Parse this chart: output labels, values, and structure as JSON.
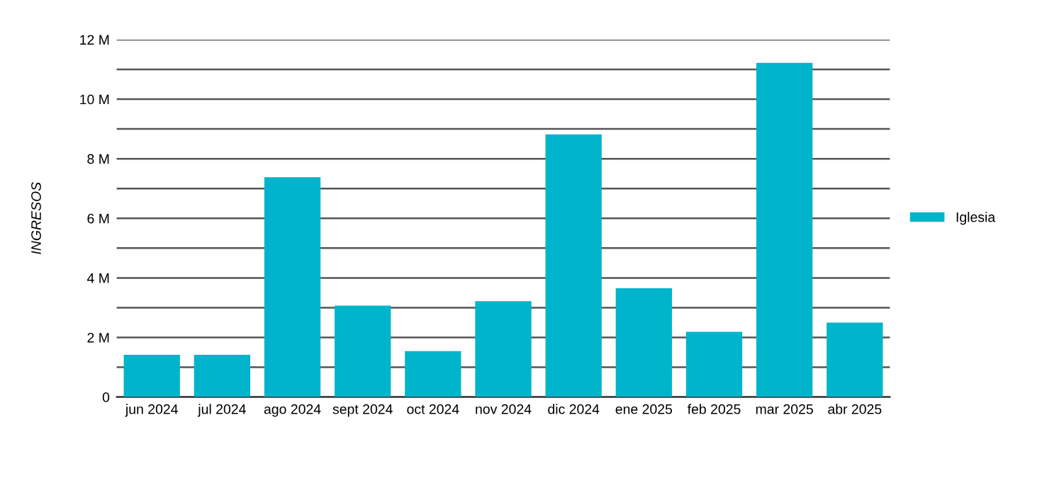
{
  "chart_data": {
    "type": "bar",
    "ylabel": "INGRESOS",
    "categories": [
      "jun 2024",
      "jul 2024",
      "ago 2024",
      "sept 2024",
      "oct 2024",
      "nov 2024",
      "dic 2024",
      "ene 2025",
      "feb 2025",
      "mar 2025",
      "abr 2025"
    ],
    "series": [
      {
        "name": "Iglesia",
        "color": "#00b5cb",
        "values": [
          1.42,
          1.42,
          7.38,
          3.07,
          1.54,
          3.22,
          8.82,
          3.65,
          2.19,
          11.22,
          2.5
        ]
      }
    ],
    "ylim": [
      0,
      12
    ],
    "yticks": [
      0,
      {
        "value": 1,
        "label": null
      },
      {
        "value": 2,
        "label": "2 M"
      },
      {
        "value": 3,
        "label": null
      },
      {
        "value": 4,
        "label": "4 M"
      },
      {
        "value": 5,
        "label": null
      },
      {
        "value": 6,
        "label": "6 M"
      },
      {
        "value": 7,
        "label": null
      },
      {
        "value": 8,
        "label": "8 M"
      },
      {
        "value": 9,
        "label": null
      },
      {
        "value": 10,
        "label": "10 M"
      },
      {
        "value": 11,
        "label": null
      },
      {
        "value": 12,
        "label": "12 M"
      }
    ],
    "grid": "y",
    "legend": "right"
  }
}
